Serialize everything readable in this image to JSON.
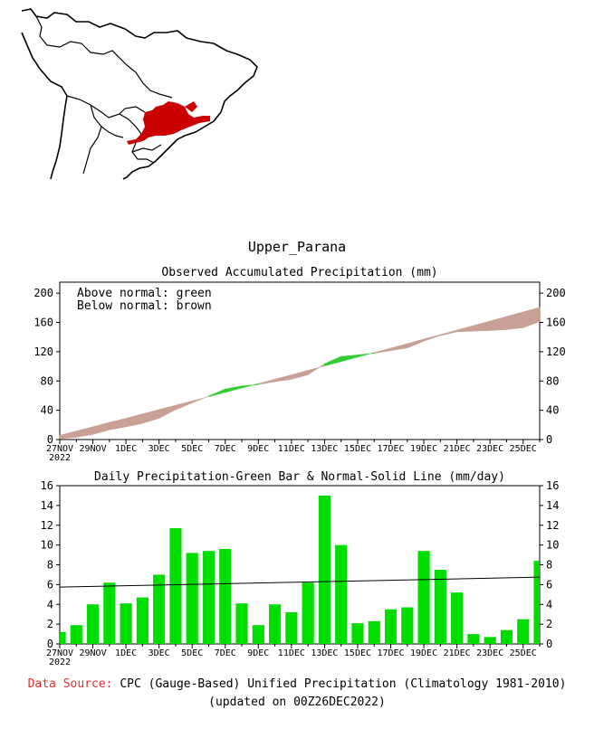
{
  "region_title": "Upper_Parana",
  "legend": {
    "line1": "Above normal: green",
    "line2": "Below normal: brown"
  },
  "colors": {
    "above": "#33cc33",
    "below": "#c8a096",
    "bar": "#00dd00",
    "map_region": "#cc0000"
  },
  "footer": {
    "source_label": "Data Source:",
    "source_text": " CPC (Gauge-Based) Unified Precipitation (Climatology 1981-2010)",
    "updated": "(updated on 00Z26DEC2022)"
  },
  "chart_data": [
    {
      "type": "area",
      "title": "Observed Accumulated Precipitation (mm)",
      "x_tick_labels": [
        "27NOV",
        "29NOV",
        "1DEC",
        "3DEC",
        "5DEC",
        "7DEC",
        "9DEC",
        "11DEC",
        "13DEC",
        "15DEC",
        "17DEC",
        "19DEC",
        "21DEC",
        "23DEC",
        "25DEC"
      ],
      "x_year_label": "2022",
      "ylim": [
        0,
        215
      ],
      "y_ticks": [
        0,
        40,
        80,
        120,
        160,
        200
      ],
      "series": [
        {
          "name": "observed",
          "values": [
            1.2,
            3.1,
            7.1,
            13.3,
            17.4,
            22.1,
            29.1,
            40.8,
            50.0,
            59.4,
            69.0,
            73.2,
            75.1,
            79.1,
            82.3,
            88.5,
            103.5,
            113.5,
            115.6,
            117.9,
            121.4,
            125.1,
            134.5,
            142.0,
            147.2,
            148.2,
            148.9,
            150.3,
            152.8,
            161.2
          ]
        },
        {
          "name": "normal",
          "values": [
            5.8,
            11.6,
            17.4,
            23.3,
            29.1,
            35.0,
            40.9,
            46.8,
            52.7,
            58.6,
            64.5,
            70.5,
            76.4,
            82.4,
            88.4,
            94.5,
            100.5,
            106.6,
            112.7,
            118.8,
            124.9,
            131.0,
            137.2,
            143.3,
            149.5,
            155.7,
            161.9,
            168.1,
            174.3,
            180.5
          ]
        }
      ]
    },
    {
      "type": "bar",
      "title": "Daily Precipitation-Green Bar & Normal-Solid Line (mm/day)",
      "x_tick_labels": [
        "27NOV",
        "29NOV",
        "1DEC",
        "3DEC",
        "5DEC",
        "7DEC",
        "9DEC",
        "11DEC",
        "13DEC",
        "15DEC",
        "17DEC",
        "19DEC",
        "21DEC",
        "23DEC",
        "25DEC"
      ],
      "x_year_label": "2022",
      "ylim": [
        0,
        16
      ],
      "y_ticks": [
        0,
        2,
        4,
        6,
        8,
        10,
        12,
        14,
        16
      ],
      "values": [
        1.2,
        1.9,
        4.0,
        6.2,
        4.1,
        4.7,
        7.0,
        11.7,
        9.2,
        9.4,
        9.6,
        4.1,
        1.9,
        4.0,
        3.2,
        6.2,
        15.0,
        10.0,
        2.1,
        2.3,
        3.5,
        3.7,
        9.4,
        7.5,
        5.2,
        1.0,
        0.7,
        1.4,
        2.5,
        8.4
      ],
      "normal_line": {
        "start": 5.75,
        "end": 6.75
      }
    }
  ]
}
